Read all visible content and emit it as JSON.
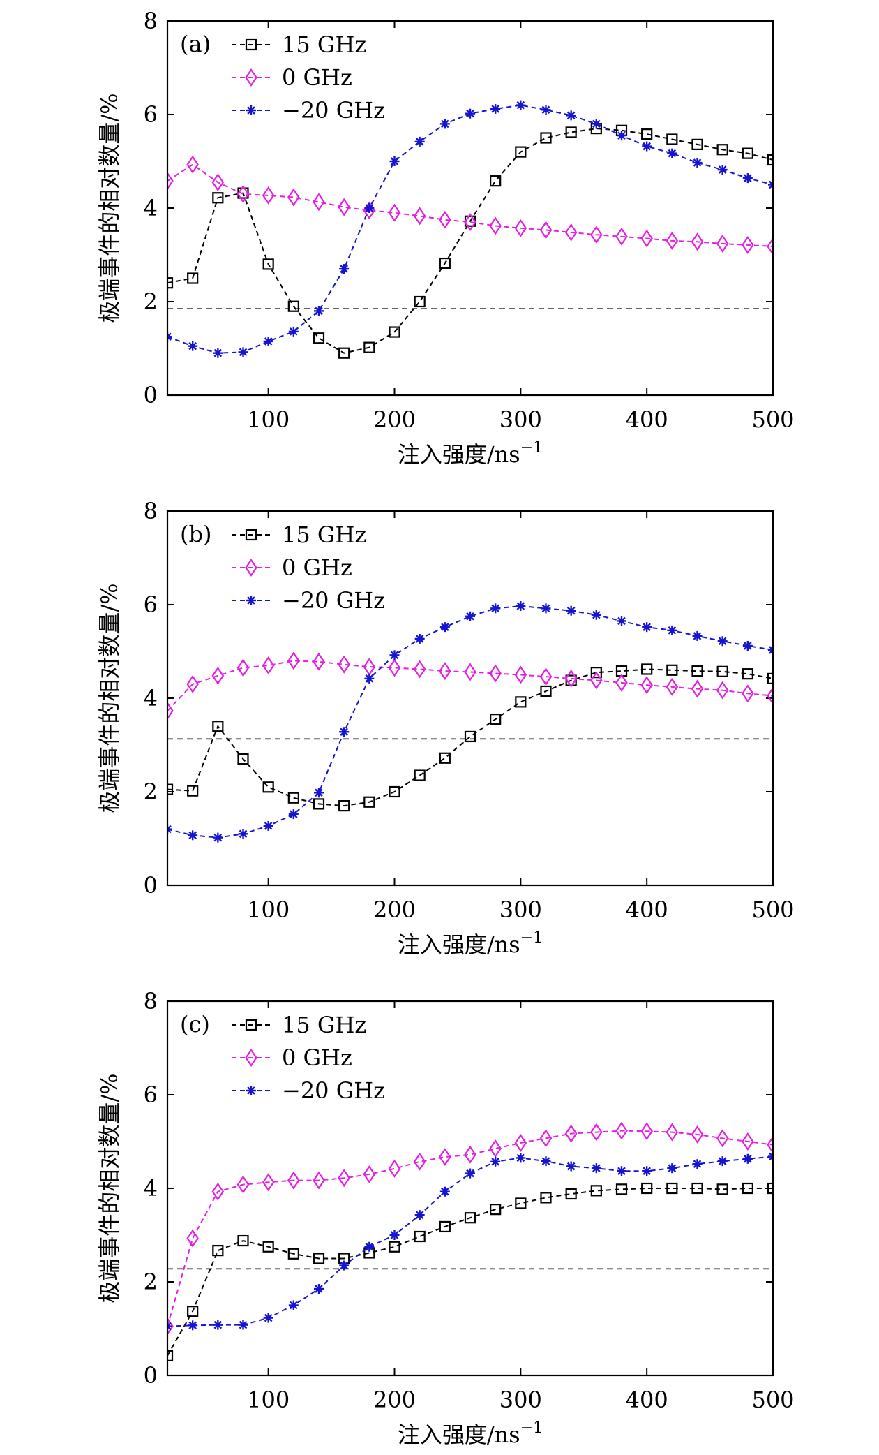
{
  "chart_data": [
    {
      "type": "line",
      "panel_label": "(a)",
      "xlabel": "注入强度/ns",
      "xlabel_sup": "−1",
      "ylabel": "极端事件的相对数量/%",
      "xlim": [
        20,
        500
      ],
      "ylim": [
        0,
        8
      ],
      "x_ticks": [
        100,
        200,
        300,
        400,
        500
      ],
      "y_ticks": [
        0,
        2,
        4,
        6,
        8
      ],
      "x": [
        20,
        40,
        60,
        80,
        100,
        120,
        140,
        160,
        180,
        200,
        220,
        240,
        260,
        280,
        300,
        320,
        340,
        360,
        380,
        400,
        420,
        440,
        460,
        480,
        500
      ],
      "threshold": 1.85,
      "legend_position": "top-left",
      "series": [
        {
          "name": "15 GHz",
          "color": "#000000",
          "marker": "square",
          "values": [
            2.4,
            2.5,
            4.22,
            4.32,
            2.8,
            1.9,
            1.22,
            0.9,
            1.02,
            1.35,
            2.0,
            2.82,
            3.72,
            4.58,
            5.2,
            5.5,
            5.62,
            5.7,
            5.66,
            5.58,
            5.47,
            5.36,
            5.25,
            5.17,
            5.03
          ]
        },
        {
          "name": "0 GHz",
          "color": "#e61ee6",
          "marker": "diamond",
          "values": [
            4.58,
            4.93,
            4.55,
            4.3,
            4.27,
            4.23,
            4.13,
            4.02,
            3.95,
            3.9,
            3.83,
            3.75,
            3.7,
            3.62,
            3.57,
            3.53,
            3.48,
            3.43,
            3.39,
            3.35,
            3.3,
            3.28,
            3.24,
            3.21,
            3.18
          ]
        },
        {
          "name": "−20 GHz",
          "color": "#1414d2",
          "marker": "star",
          "values": [
            1.25,
            1.05,
            0.9,
            0.92,
            1.15,
            1.36,
            1.8,
            2.7,
            4.0,
            5.0,
            5.42,
            5.8,
            6.02,
            6.12,
            6.2,
            6.1,
            5.98,
            5.8,
            5.55,
            5.32,
            5.17,
            4.97,
            4.82,
            4.64,
            4.5
          ]
        }
      ]
    },
    {
      "type": "line",
      "panel_label": "(b)",
      "xlabel": "注入强度/ns",
      "xlabel_sup": "−1",
      "ylabel": "极端事件的相对数量/%",
      "xlim": [
        20,
        500
      ],
      "ylim": [
        0,
        8
      ],
      "x_ticks": [
        100,
        200,
        300,
        400,
        500
      ],
      "y_ticks": [
        0,
        2,
        4,
        6,
        8
      ],
      "x": [
        20,
        40,
        60,
        80,
        100,
        120,
        140,
        160,
        180,
        200,
        220,
        240,
        260,
        280,
        300,
        320,
        340,
        360,
        380,
        400,
        420,
        440,
        460,
        480,
        500
      ],
      "threshold": 3.13,
      "legend_position": "top-left",
      "series": [
        {
          "name": "15 GHz",
          "color": "#000000",
          "marker": "square",
          "values": [
            2.05,
            2.02,
            3.4,
            2.7,
            2.1,
            1.87,
            1.74,
            1.7,
            1.78,
            2.0,
            2.35,
            2.72,
            3.18,
            3.55,
            3.92,
            4.15,
            4.38,
            4.55,
            4.58,
            4.62,
            4.6,
            4.58,
            4.57,
            4.52,
            4.42
          ]
        },
        {
          "name": "0 GHz",
          "color": "#e61ee6",
          "marker": "diamond",
          "values": [
            3.73,
            4.3,
            4.48,
            4.65,
            4.7,
            4.8,
            4.78,
            4.72,
            4.67,
            4.65,
            4.62,
            4.58,
            4.56,
            4.53,
            4.5,
            4.46,
            4.42,
            4.38,
            4.33,
            4.28,
            4.24,
            4.2,
            4.17,
            4.1,
            4.05
          ]
        },
        {
          "name": "−20 GHz",
          "color": "#1414d2",
          "marker": "star",
          "values": [
            1.2,
            1.07,
            1.02,
            1.1,
            1.27,
            1.52,
            1.98,
            3.28,
            4.42,
            4.92,
            5.27,
            5.52,
            5.75,
            5.92,
            5.97,
            5.92,
            5.87,
            5.78,
            5.65,
            5.52,
            5.45,
            5.33,
            5.22,
            5.12,
            5.03
          ]
        }
      ]
    },
    {
      "type": "line",
      "panel_label": "(c)",
      "xlabel": "注入强度/ns",
      "xlabel_sup": "−1",
      "ylabel": "极端事件的相对数量/%",
      "xlim": [
        20,
        500
      ],
      "ylim": [
        0,
        8
      ],
      "x_ticks": [
        100,
        200,
        300,
        400,
        500
      ],
      "y_ticks": [
        0,
        2,
        4,
        6,
        8
      ],
      "x": [
        20,
        40,
        60,
        80,
        100,
        120,
        140,
        160,
        180,
        200,
        220,
        240,
        260,
        280,
        300,
        320,
        340,
        360,
        380,
        400,
        420,
        440,
        460,
        480,
        500
      ],
      "threshold": 2.28,
      "legend_position": "top-left",
      "series": [
        {
          "name": "15 GHz",
          "color": "#000000",
          "marker": "square",
          "values": [
            0.42,
            1.37,
            2.67,
            2.88,
            2.75,
            2.6,
            2.5,
            2.5,
            2.62,
            2.75,
            2.97,
            3.18,
            3.37,
            3.55,
            3.68,
            3.8,
            3.88,
            3.95,
            3.98,
            4.0,
            4.0,
            4.0,
            3.98,
            4.0,
            4.0
          ]
        },
        {
          "name": "0 GHz",
          "color": "#e61ee6",
          "marker": "diamond",
          "values": [
            1.05,
            2.93,
            3.93,
            4.08,
            4.13,
            4.17,
            4.17,
            4.22,
            4.3,
            4.42,
            4.57,
            4.67,
            4.72,
            4.85,
            4.97,
            5.07,
            5.17,
            5.2,
            5.23,
            5.22,
            5.2,
            5.15,
            5.07,
            5.0,
            4.93
          ]
        },
        {
          "name": "−20 GHz",
          "color": "#1414d2",
          "marker": "star",
          "values": [
            1.05,
            1.07,
            1.08,
            1.08,
            1.23,
            1.5,
            1.85,
            2.35,
            2.75,
            3.0,
            3.43,
            3.93,
            4.32,
            4.57,
            4.65,
            4.58,
            4.47,
            4.43,
            4.37,
            4.37,
            4.43,
            4.52,
            4.58,
            4.63,
            4.68
          ]
        }
      ]
    }
  ]
}
